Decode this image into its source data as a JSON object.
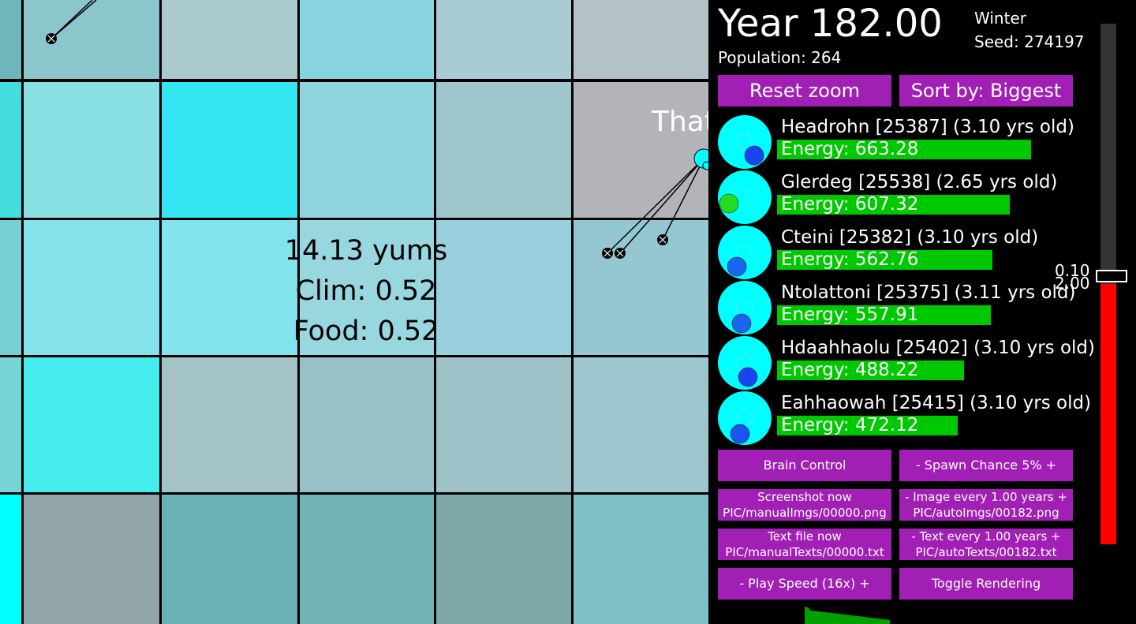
{
  "world": {
    "tile_colors": [
      [
        "#6fb6bc",
        "#8ac6cc",
        "#a9c9cd",
        "#87d3e0",
        "#a9ccd2",
        "#b4c2c6"
      ],
      [
        "#44dddd",
        "#88e0e2",
        "#33e6f2",
        "#8fd5e0",
        "#9ec6cd",
        "#b2b4b8"
      ],
      [
        "#77cfd3",
        "#84e2ea",
        "#83e3ec",
        "#98d6e0",
        "#98d1dd",
        "#95c7d2"
      ],
      [
        "#77d5d6",
        "#44ecec",
        "#a4c3c6",
        "#97c1c6",
        "#9fc2c8",
        "#9dc6cf"
      ],
      [
        "#00ffff",
        "#91a5a8",
        "#6ab2b6",
        "#70b4b8",
        "#7fa8aa",
        "#7fc0c8"
      ]
    ],
    "tile_info": {
      "yums": "14.13 yums",
      "clim": "Clim: 0.52",
      "food": "Food: 0.52"
    },
    "creature_label": "That",
    "creature_color": "#00ffff"
  },
  "panel": {
    "year": "Year 182.00",
    "population": "Population: 264",
    "season": "Winter",
    "seed": "Seed: 274197",
    "buttons": {
      "reset_zoom": "Reset zoom",
      "sort_by": "Sort by: Biggest",
      "brain_control": "Brain Control",
      "spawn_chance": "-   Spawn Chance 5%   +",
      "screenshot_line1": "Screenshot now",
      "screenshot_line2": "PIC/manualImgs/00000.png",
      "image_every_line1": "-   Image every 1.00 years   +",
      "image_every_line2": "PIC/autoImgs/00182.png",
      "text_file_line1": "Text file now",
      "text_file_line2": "PIC/manualTexts/00000.txt",
      "text_every_line1": "-   Text every 1.00 years   +",
      "text_every_line2": "PIC/autoTexts/00182.txt",
      "play_speed": "-    Play Speed (16x)    +",
      "toggle_rendering": "Toggle Rendering"
    },
    "creatures": [
      {
        "name": "Headrohn [25387] (3.10 yrs old)",
        "energy": "Energy: 663.28",
        "energy_value": 663.28,
        "mouth_color": "#1a44ee"
      },
      {
        "name": "Glerdeg [25538] (2.65 yrs old)",
        "energy": "Energy: 607.32",
        "energy_value": 607.32,
        "mouth_color": "#22dd22"
      },
      {
        "name": "Cteini [25382] (3.10 yrs old)",
        "energy": "Energy: 562.76",
        "energy_value": 562.76,
        "mouth_color": "#1a66ee"
      },
      {
        "name": "Ntolattoni [25375] (3.11 yrs old)",
        "energy": "Energy: 557.91",
        "energy_value": 557.91,
        "mouth_color": "#1a66ee"
      },
      {
        "name": "Hdaahhaolu [25402] (3.10 yrs old)",
        "energy": "Energy: 488.22",
        "energy_value": 488.22,
        "mouth_color": "#1a44ee"
      },
      {
        "name": "Eahhaowah [25415] (3.10 yrs old)",
        "energy": "Energy: 472.12",
        "energy_value": 472.12,
        "mouth_color": "#1a55ee"
      }
    ],
    "slider": {
      "top_label": "0.10",
      "bottom_label": "2.00",
      "fill_fraction": 0.5
    },
    "colors": {
      "button": "#a21fb6",
      "energy_bar": "#00c800",
      "slider_fill": "#ff0000"
    }
  }
}
